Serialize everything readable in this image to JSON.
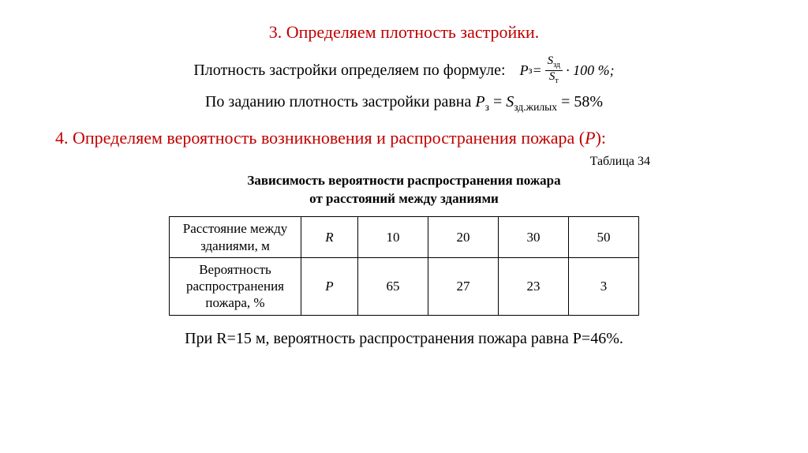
{
  "section3": {
    "title": "3. Определяем плотность застройки.",
    "line1_text": "Плотность застройки определяем по формуле:",
    "formula": {
      "lhs": "P",
      "lhs_sub": "з",
      "eq": " = ",
      "num": "S",
      "num_sub": "зд",
      "den": "S",
      "den_sub": "т",
      "tail": " · 100 %;"
    },
    "line2_prefix": "По заданию плотность застройки равна ",
    "line2_p": "P",
    "line2_p_sub": "з",
    "line2_eq1": " = ",
    "line2_s": "S",
    "line2_s_sub": "зд.жилых",
    "line2_eq2": " = ",
    "line2_val": "58%"
  },
  "section4": {
    "title_prefix": "4. Определяем вероятность возникновения и распространения пожара (",
    "title_var": "P",
    "title_suffix": "):",
    "table_label": "Таблица 34",
    "table_title_l1": "Зависимость вероятности распространения пожара",
    "table_title_l2": "от расстояний между зданиями",
    "table": {
      "row1_head": "Расстояние между зданиями, м",
      "row1_sym": "R",
      "row1_vals": [
        "10",
        "20",
        "30",
        "50"
      ],
      "row2_head": "Вероятность распространения пожара, %",
      "row2_sym": "P",
      "row2_vals": [
        "65",
        "27",
        "23",
        "3"
      ]
    },
    "conclusion": "При R=15 м, вероятность распространения пожара равна P=46%."
  }
}
